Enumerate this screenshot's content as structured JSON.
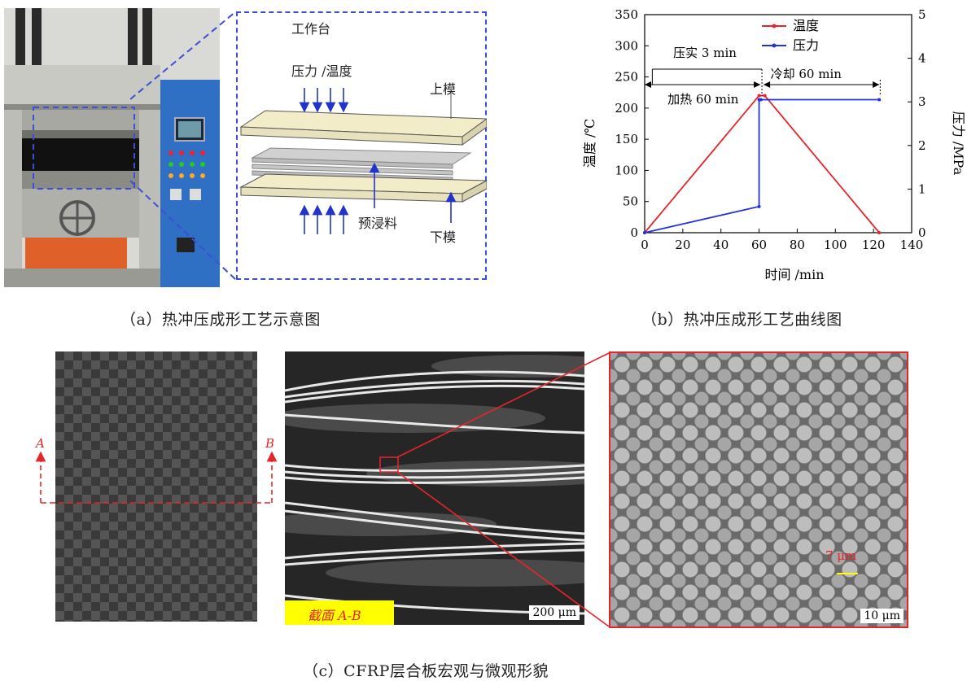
{
  "panel_a": {
    "worktable_label": "工作台",
    "pressure_temp_label": "压力 /温度",
    "upper_mold_label": "上模",
    "prepreg_label": "预浸料",
    "lower_mold_label": "下模",
    "caption": "（a）热冲压成形工艺示意图",
    "colors": {
      "dashed_callout": "#3b4fd6",
      "machine_blue": "#2f6fc4",
      "platen_red": "#e0602a"
    }
  },
  "panel_b": {
    "caption": "（b）热冲压成形工艺曲线图",
    "annotations": {
      "compact": "压实 3 min",
      "heat": "加热 60 min",
      "cool": "冷却 60 min"
    }
  },
  "chart_data": {
    "type": "line",
    "xlabel": "时间 /min",
    "ylabel": "温度 /℃",
    "y2label": "压力 /MPa",
    "xlim": [
      0,
      140
    ],
    "ylim": [
      0,
      350
    ],
    "y2lim": [
      0,
      5
    ],
    "xticks": [
      "0",
      "20",
      "40",
      "60",
      "80",
      "100",
      "120",
      "140"
    ],
    "yticks": [
      "0",
      "50",
      "100",
      "150",
      "200",
      "250",
      "300",
      "350"
    ],
    "y2ticks": [
      "0",
      "1",
      "2",
      "3",
      "4",
      "5"
    ],
    "legend_position": "top-right",
    "series": [
      {
        "name": "温度",
        "axis": "left",
        "color": "#e8242b",
        "x": [
          0,
          60,
          63,
          123
        ],
        "y": [
          0,
          220,
          220,
          0
        ]
      },
      {
        "name": "压力",
        "axis": "right",
        "color": "#2233dd",
        "x": [
          0,
          60,
          60,
          61,
          123
        ],
        "y": [
          0,
          0.6,
          3.05,
          3.05,
          3.05
        ]
      }
    ]
  },
  "panel_c": {
    "section_label": "截面 A-B",
    "scale_macro": "200 μm",
    "scale_micro": "10 μm",
    "fiber_dia": "7 μm",
    "label_a": "A",
    "label_b": "B",
    "caption": "（c）CFRP层合板宏观与微观形貌",
    "colors": {
      "accent_red": "#e8242b",
      "section_yellow": "#ffff00"
    }
  }
}
